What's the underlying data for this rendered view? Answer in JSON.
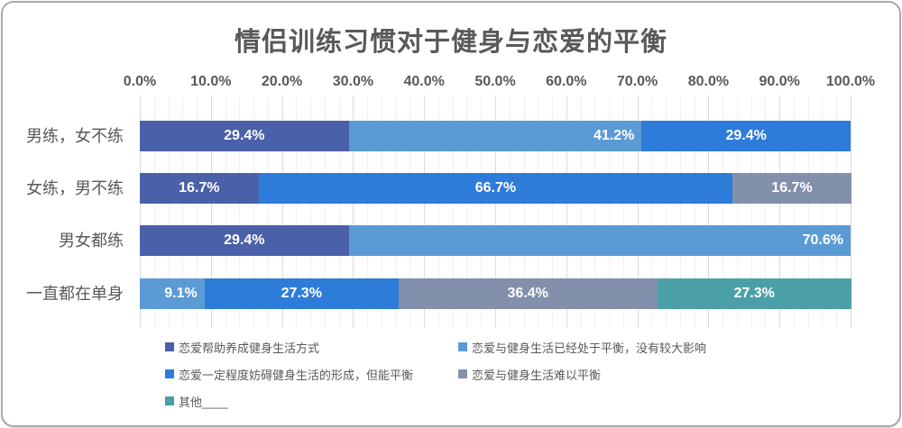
{
  "chart_data": {
    "type": "bar",
    "subtype": "horizontal-stacked-100",
    "title": "情侣训练习惯对于健身与恋爱的平衡",
    "xlabel": "",
    "ylabel": "",
    "x_axis": {
      "min": 0,
      "max": 100,
      "tick_step": 10,
      "minor_gridline_step": 2,
      "tick_labels": [
        "0.0%",
        "10.0%",
        "20.0%",
        "30.0%",
        "40.0%",
        "50.0%",
        "60.0%",
        "70.0%",
        "80.0%",
        "90.0%",
        "100.0%"
      ]
    },
    "grid": "on",
    "legend_position": "bottom",
    "series": [
      {
        "name": "恋爱帮助养成健身生活方式",
        "color": "#4A60A8",
        "label_position": "center"
      },
      {
        "name": "恋爱与健身生活已经处于平衡，没有较大影响",
        "color": "#5B9BD5",
        "label_position": "inside-end"
      },
      {
        "name": "恋爱一定程度妨碍健身生活的形成，但能平衡",
        "color": "#2E7CD9",
        "label_position": "center"
      },
      {
        "name": "恋爱与健身生活难以平衡",
        "color": "#8290AC",
        "label_position": "center"
      },
      {
        "name": "其他____",
        "color": "#4BA0A8",
        "label_position": "center"
      }
    ],
    "categories": [
      "男练，女不练",
      "女练，男不练",
      "男女都练",
      "一直都在单身"
    ],
    "rows": [
      {
        "category": "男练，女不练",
        "segments": [
          {
            "series": 0,
            "value": 29.4,
            "label": "29.4%"
          },
          {
            "series": 1,
            "value": 41.2,
            "label": "41.2%"
          },
          {
            "series": 2,
            "value": 29.4,
            "label": "29.4%"
          }
        ]
      },
      {
        "category": "女练，男不练",
        "segments": [
          {
            "series": 0,
            "value": 16.7,
            "label": "16.7%"
          },
          {
            "series": 2,
            "value": 66.7,
            "label": "66.7%"
          },
          {
            "series": 3,
            "value": 16.7,
            "label": "16.7%"
          }
        ]
      },
      {
        "category": "男女都练",
        "segments": [
          {
            "series": 0,
            "value": 29.4,
            "label": "29.4%"
          },
          {
            "series": 1,
            "value": 70.6,
            "label": "70.6%"
          }
        ]
      },
      {
        "category": "一直都在单身",
        "segments": [
          {
            "series": 1,
            "value": 9.1,
            "label": "9.1%"
          },
          {
            "series": 2,
            "value": 27.3,
            "label": "27.3%"
          },
          {
            "series": 3,
            "value": 36.4,
            "label": "36.4%"
          },
          {
            "series": 4,
            "value": 27.3,
            "label": "27.3%"
          }
        ]
      }
    ],
    "text_color": "#595959"
  }
}
